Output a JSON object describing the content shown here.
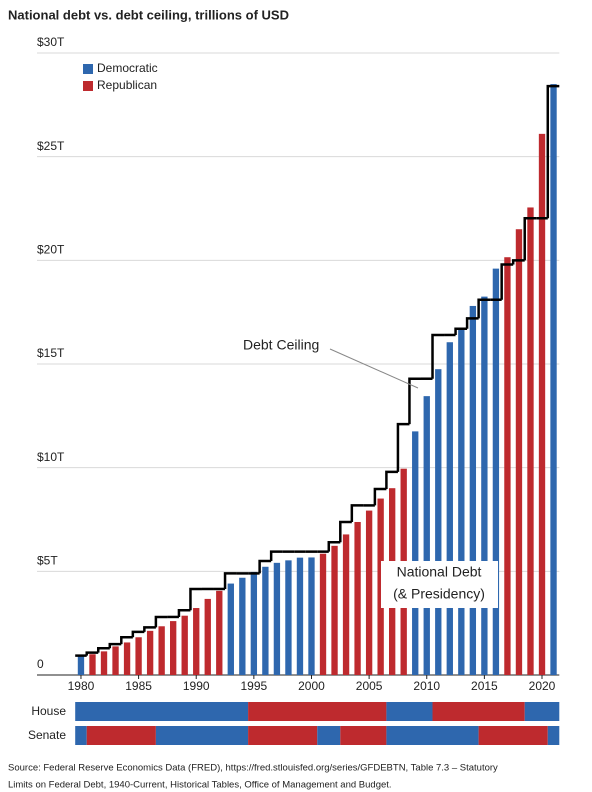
{
  "chart_data": {
    "type": "bar",
    "title": "National debt vs. debt ceiling, trillions of USD",
    "x": [
      1980,
      1981,
      1982,
      1983,
      1984,
      1985,
      1986,
      1987,
      1988,
      1989,
      1990,
      1991,
      1992,
      1993,
      1994,
      1995,
      1996,
      1997,
      1998,
      1999,
      2000,
      2001,
      2002,
      2003,
      2004,
      2005,
      2006,
      2007,
      2008,
      2009,
      2010,
      2011,
      2012,
      2013,
      2014,
      2015,
      2016,
      2017,
      2018,
      2019,
      2020,
      2021
    ],
    "values": [
      0.91,
      1.0,
      1.14,
      1.38,
      1.57,
      1.82,
      2.13,
      2.35,
      2.6,
      2.86,
      3.23,
      3.67,
      4.06,
      4.41,
      4.69,
      4.97,
      5.22,
      5.41,
      5.53,
      5.66,
      5.67,
      5.85,
      6.23,
      6.78,
      7.38,
      7.93,
      8.51,
      9.01,
      9.95,
      11.75,
      13.45,
      14.75,
      16.05,
      16.65,
      17.8,
      18.25,
      19.6,
      20.15,
      21.5,
      22.55,
      26.1,
      28.5
    ],
    "bar_colors": [
      "#2e67ae",
      "#be2a2e",
      "#be2a2e",
      "#be2a2e",
      "#be2a2e",
      "#be2a2e",
      "#be2a2e",
      "#be2a2e",
      "#be2a2e",
      "#be2a2e",
      "#be2a2e",
      "#be2a2e",
      "#be2a2e",
      "#2e67ae",
      "#2e67ae",
      "#2e67ae",
      "#2e67ae",
      "#2e67ae",
      "#2e67ae",
      "#2e67ae",
      "#2e67ae",
      "#be2a2e",
      "#be2a2e",
      "#be2a2e",
      "#be2a2e",
      "#be2a2e",
      "#be2a2e",
      "#be2a2e",
      "#be2a2e",
      "#2e67ae",
      "#2e67ae",
      "#2e67ae",
      "#2e67ae",
      "#2e67ae",
      "#2e67ae",
      "#2e67ae",
      "#2e67ae",
      "#be2a2e",
      "#be2a2e",
      "#be2a2e",
      "#be2a2e",
      "#2e67ae"
    ],
    "ceiling": [
      0.935,
      1.08,
      1.29,
      1.49,
      1.82,
      2.08,
      2.3,
      2.8,
      2.8,
      3.12,
      4.15,
      4.15,
      4.15,
      4.9,
      4.9,
      4.9,
      5.5,
      5.95,
      5.95,
      5.95,
      5.95,
      5.95,
      6.4,
      7.38,
      8.18,
      8.18,
      8.97,
      9.8,
      12.1,
      14.29,
      14.29,
      16.4,
      16.4,
      16.7,
      17.2,
      18.1,
      18.1,
      19.8,
      20.0,
      22.03,
      22.03,
      28.4
    ],
    "legend": [
      {
        "name": "Democratic",
        "color": "#2e67ae"
      },
      {
        "name": "Republican",
        "color": "#be2a2e"
      }
    ],
    "xlim": [
      1979.5,
      2021.5
    ],
    "xticks": [
      1980,
      1985,
      1990,
      1995,
      2000,
      2005,
      2010,
      2015,
      2020
    ],
    "ylim": [
      0,
      30
    ],
    "yticks": [
      0,
      {
        "value": 5,
        "label": "$5T"
      },
      {
        "value": 10,
        "label": "$10T"
      },
      {
        "value": 15,
        "label": "$15T"
      },
      {
        "value": 20,
        "label": "$20T"
      },
      {
        "value": 25,
        "label": "$25T"
      },
      {
        "value": 30,
        "label": "$30T"
      }
    ],
    "grid": true,
    "annotations": {
      "ceiling": "Debt Ceiling",
      "debt_line1": "National Debt",
      "debt_line2": "(& Presidency)"
    },
    "house_label": "House",
    "house": [
      {
        "start": 1980,
        "end": 1994,
        "color": "#2e67ae"
      },
      {
        "start": 1995,
        "end": 2006,
        "color": "#be2a2e"
      },
      {
        "start": 2007,
        "end": 2010,
        "color": "#2e67ae"
      },
      {
        "start": 2011,
        "end": 2018,
        "color": "#be2a2e"
      },
      {
        "start": 2019,
        "end": 2021,
        "color": "#2e67ae"
      }
    ],
    "senate_label": "Senate",
    "senate": [
      {
        "start": 1980,
        "end": 1980,
        "color": "#2e67ae"
      },
      {
        "start": 1981,
        "end": 1986,
        "color": "#be2a2e"
      },
      {
        "start": 1987,
        "end": 1994,
        "color": "#2e67ae"
      },
      {
        "start": 1995,
        "end": 2000,
        "color": "#be2a2e"
      },
      {
        "start": 2001,
        "end": 2002,
        "color": "#2e67ae"
      },
      {
        "start": 2003,
        "end": 2006,
        "color": "#be2a2e"
      },
      {
        "start": 2007,
        "end": 2014,
        "color": "#2e67ae"
      },
      {
        "start": 2015,
        "end": 2020,
        "color": "#be2a2e"
      },
      {
        "start": 2021,
        "end": 2021,
        "color": "#2e67ae"
      }
    ],
    "source_line1": "Source: Federal Reserve Economics Data (FRED), https://fred.stlouisfed.org/series/GFDEBTN, Table 7.3 – Statutory",
    "source_line2": "Limits on Federal Debt, 1940-Current, Historical Tables, Office of Management and Budget."
  }
}
